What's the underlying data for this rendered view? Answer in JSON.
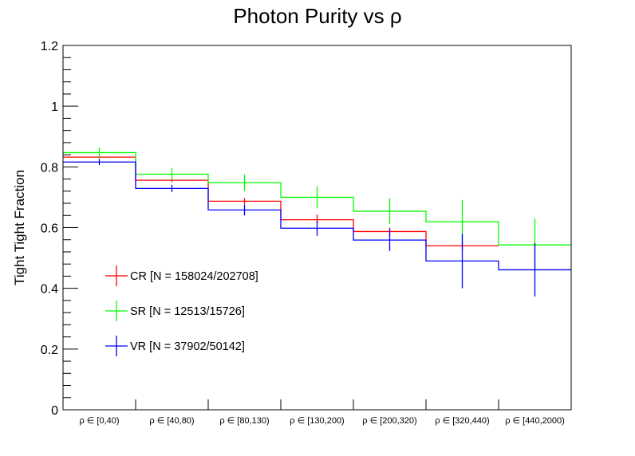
{
  "chart_data": {
    "type": "line",
    "subtype": "step-histogram-with-errors",
    "title": "Photon Purity vs  ρ",
    "xlabel": "",
    "ylabel": "Tight Tight Fraction",
    "ylim": [
      0,
      1.2
    ],
    "yticks": [
      "0",
      "0.2",
      "0.4",
      "0.6",
      "0.8",
      "1",
      "1.2"
    ],
    "ytick_values": [
      0,
      0.2,
      0.4,
      0.6,
      0.8,
      1.0,
      1.2
    ],
    "grid": false,
    "legend_placement": "lower-left",
    "categories": [
      "ρ ∈ [0,40)",
      "ρ ∈ [40,80)",
      "ρ ∈ [80,130)",
      "ρ ∈ [130,200)",
      "ρ ∈ [200,320)",
      "ρ ∈ [320,440)",
      "ρ ∈ [440,2000)"
    ],
    "series": [
      {
        "name": "CR [N = 158024/202708]",
        "color": "#ff0000",
        "values": [
          0.832,
          0.756,
          0.687,
          0.626,
          0.587,
          0.54,
          null
        ],
        "errors": [
          0.004,
          0.006,
          0.01,
          0.017,
          0.013,
          0.015,
          null
        ]
      },
      {
        "name": "SR [N = 12513/15726]",
        "color": "#00ff00",
        "values": [
          0.847,
          0.776,
          0.748,
          0.7,
          0.654,
          0.619,
          0.543
        ],
        "errors": [
          0.017,
          0.02,
          0.027,
          0.036,
          0.042,
          0.072,
          0.087
        ]
      },
      {
        "name": "VR [N = 37902/50142]",
        "color": "#0000ff",
        "values": [
          0.816,
          0.729,
          0.658,
          0.598,
          0.559,
          0.49,
          0.461
        ],
        "errors": [
          0.01,
          0.012,
          0.018,
          0.025,
          0.036,
          0.09,
          0.088
        ]
      }
    ]
  }
}
